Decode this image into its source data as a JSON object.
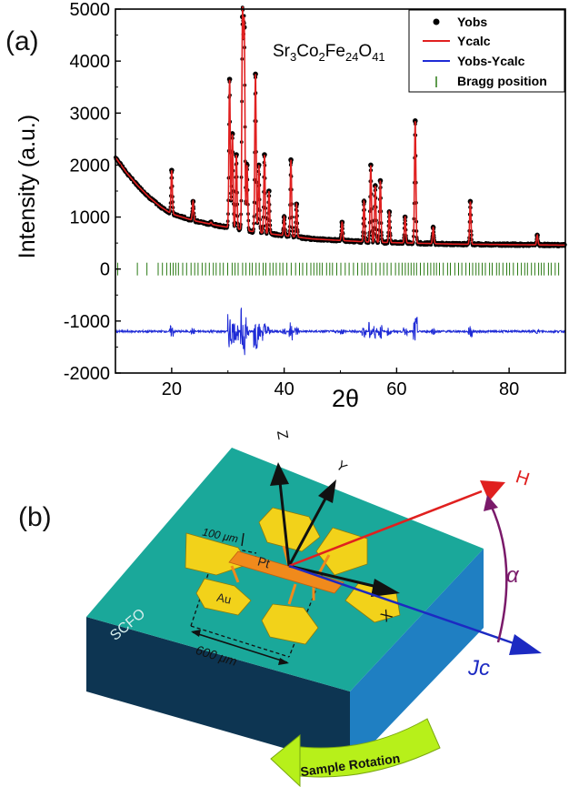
{
  "panel_a_label": "(a)",
  "panel_b_label": "(b)",
  "chart_data": {
    "type": "line",
    "formula": "Sr3Co2Fe24O41",
    "formula_parts": [
      "Sr",
      "3",
      "Co",
      "2",
      "Fe",
      "24",
      "O",
      "41"
    ],
    "xlabel": "2θ",
    "ylabel": "Intensity (a.u.)",
    "xlim": [
      10,
      90
    ],
    "ylim": [
      -2000,
      5000
    ],
    "x_ticks": [
      20,
      40,
      60,
      80
    ],
    "y_ticks": [
      -2000,
      -1000,
      0,
      1000,
      2000,
      3000,
      4000,
      5000
    ],
    "legend_position": "top-right",
    "series": [
      {
        "name": "Yobs",
        "color": "#000000",
        "style": "points"
      },
      {
        "name": "Ycalc",
        "color": "#e02020",
        "style": "line"
      },
      {
        "name": "Yobs-Ycalc",
        "color": "#1f2bd6",
        "style": "line"
      },
      {
        "name": "Bragg position",
        "color": "#2a7a14",
        "style": "ticks"
      }
    ],
    "background_points": [
      [
        10,
        2150
      ],
      [
        12,
        1850
      ],
      [
        14,
        1600
      ],
      [
        16,
        1380
      ],
      [
        18,
        1200
      ],
      [
        20,
        1060
      ],
      [
        24,
        930
      ],
      [
        28,
        840
      ],
      [
        35,
        710
      ],
      [
        45,
        580
      ],
      [
        55,
        520
      ],
      [
        70,
        480
      ],
      [
        90,
        460
      ]
    ],
    "peaks": [
      {
        "x": 20.0,
        "y": 1900
      },
      {
        "x": 23.8,
        "y": 1300
      },
      {
        "x": 27.0,
        "y": 900
      },
      {
        "x": 30.3,
        "y": 3650
      },
      {
        "x": 30.8,
        "y": 2600
      },
      {
        "x": 31.5,
        "y": 2200
      },
      {
        "x": 32.6,
        "y": 4850
      },
      {
        "x": 32.9,
        "y": 4650
      },
      {
        "x": 33.4,
        "y": 2000
      },
      {
        "x": 34.9,
        "y": 3750
      },
      {
        "x": 35.5,
        "y": 2000
      },
      {
        "x": 36.5,
        "y": 2200
      },
      {
        "x": 37.3,
        "y": 1500
      },
      {
        "x": 40.0,
        "y": 1000
      },
      {
        "x": 41.2,
        "y": 2100
      },
      {
        "x": 42.2,
        "y": 1250
      },
      {
        "x": 50.3,
        "y": 900
      },
      {
        "x": 54.2,
        "y": 1300
      },
      {
        "x": 55.4,
        "y": 2000
      },
      {
        "x": 56.2,
        "y": 1600
      },
      {
        "x": 57.1,
        "y": 1700
      },
      {
        "x": 58.7,
        "y": 1100
      },
      {
        "x": 61.5,
        "y": 1000
      },
      {
        "x": 63.3,
        "y": 2850
      },
      {
        "x": 66.5,
        "y": 800
      },
      {
        "x": 73.1,
        "y": 1300
      },
      {
        "x": 85.0,
        "y": 650
      }
    ],
    "difference_baseline": -1200,
    "bragg_tick_level": 0
  },
  "diagram": {
    "axis_labels": {
      "z": "Z",
      "y": "Y",
      "x": "X",
      "h": "H",
      "jc": "Jc",
      "alpha": "α"
    },
    "labels": {
      "pt": "Pt",
      "au": "Au",
      "substrate": "SCFO"
    },
    "dimensions": {
      "small": "100 μm",
      "large": "600 μm"
    },
    "rotation_label": "Sample Rotation",
    "colors": {
      "substrate_top": "#1aa89a",
      "substrate_front": "#0d3552",
      "substrate_side": "#1f7fc2",
      "pads": "#f2d21a",
      "pt_bar": "#f08a1c",
      "h_arrow": "#e0201f",
      "jc_arrow": "#1c2ac2",
      "alpha_arc": "#7a1a6a",
      "rotation_arrow": "#b7f01a"
    }
  }
}
